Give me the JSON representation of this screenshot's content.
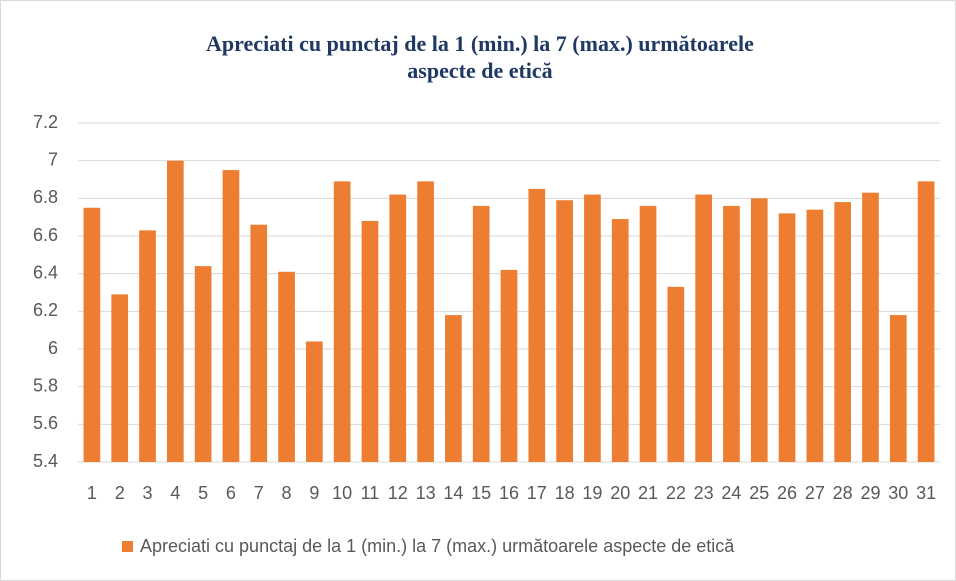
{
  "chart_data": {
    "type": "bar",
    "title": "Apreciati cu punctaj de la 1 (min.) la 7 (max.) următoarele aspecte de etică",
    "categories": [
      "1",
      "2",
      "3",
      "4",
      "5",
      "6",
      "7",
      "8",
      "9",
      "10",
      "11",
      "12",
      "13",
      "14",
      "15",
      "16",
      "17",
      "18",
      "19",
      "20",
      "21",
      "22",
      "23",
      "24",
      "25",
      "26",
      "27",
      "28",
      "29",
      "30",
      "31"
    ],
    "series": [
      {
        "name": "Apreciati cu punctaj de la 1 (min.) la 7 (max.) următoarele aspecte de etică",
        "color": "#ed7d31",
        "values": [
          6.75,
          6.29,
          6.63,
          7.0,
          6.44,
          6.95,
          6.66,
          6.41,
          6.04,
          6.89,
          6.68,
          6.82,
          6.89,
          6.18,
          6.76,
          6.42,
          6.85,
          6.79,
          6.82,
          6.69,
          6.76,
          6.33,
          6.82,
          6.76,
          6.8,
          6.72,
          6.74,
          6.78,
          6.83,
          6.18,
          6.89
        ]
      }
    ],
    "ylim": [
      5.4,
      7.2
    ],
    "yticks": [
      5.4,
      5.6,
      5.8,
      6,
      6.2,
      6.4,
      6.6,
      6.8,
      7,
      7.2
    ],
    "grid": true,
    "legend": "bottom"
  }
}
